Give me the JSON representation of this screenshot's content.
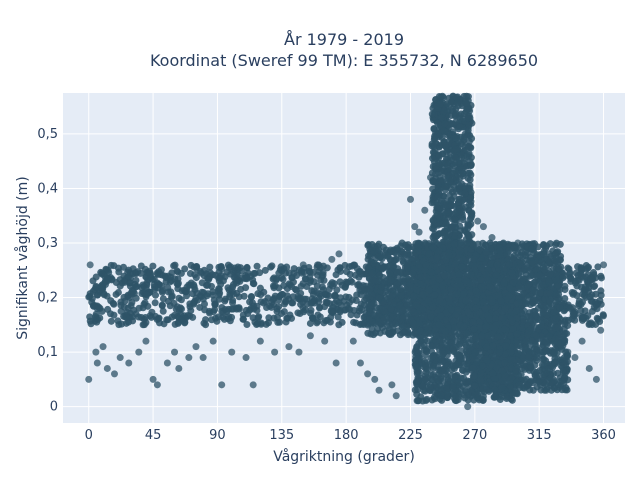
{
  "chart_data": {
    "type": "scatter",
    "title_lines": [
      "År 1979 - 2019",
      "Koordinat (Sweref 99 TM): E 355732, N 6289650"
    ],
    "xlabel": "Vågriktning (grader)",
    "ylabel": "Signifikant våghöjd (m)",
    "xlim": [
      -18,
      375
    ],
    "ylim": [
      -0.03,
      0.575
    ],
    "x_ticks": [
      0,
      45,
      90,
      135,
      180,
      225,
      270,
      315,
      360
    ],
    "x_tick_labels": [
      "0",
      "45",
      "90",
      "135",
      "180",
      "225",
      "270",
      "315",
      "360"
    ],
    "y_ticks": [
      0,
      0.1,
      0.2,
      0.3,
      0.4,
      0.5
    ],
    "y_tick_labels": [
      "0",
      "0,1",
      "0,2",
      "0,3",
      "0,4",
      "0,5"
    ],
    "grid": true,
    "marker_color": "#2e5367",
    "plot_bg": "#e5ecf6",
    "dense_regions": [
      {
        "x": [
          0,
          360
        ],
        "y": [
          0.15,
          0.26
        ]
      },
      {
        "x": [
          240,
          268
        ],
        "y": [
          0.3,
          0.57
        ]
      },
      {
        "x": [
          228,
          300
        ],
        "y": [
          0.01,
          0.3
        ]
      },
      {
        "x": [
          195,
          330
        ],
        "y": [
          0.13,
          0.3
        ]
      },
      {
        "x": [
          268,
          335
        ],
        "y": [
          0.03,
          0.15
        ]
      }
    ],
    "points": [
      {
        "x": 1,
        "y": 0.26
      },
      {
        "x": 0,
        "y": 0.05
      },
      {
        "x": 5,
        "y": 0.1
      },
      {
        "x": 6,
        "y": 0.08
      },
      {
        "x": 10,
        "y": 0.11
      },
      {
        "x": 13,
        "y": 0.07
      },
      {
        "x": 18,
        "y": 0.06
      },
      {
        "x": 22,
        "y": 0.09
      },
      {
        "x": 28,
        "y": 0.08
      },
      {
        "x": 35,
        "y": 0.1
      },
      {
        "x": 40,
        "y": 0.12
      },
      {
        "x": 45,
        "y": 0.05
      },
      {
        "x": 48,
        "y": 0.04
      },
      {
        "x": 55,
        "y": 0.08
      },
      {
        "x": 60,
        "y": 0.1
      },
      {
        "x": 63,
        "y": 0.07
      },
      {
        "x": 70,
        "y": 0.09
      },
      {
        "x": 75,
        "y": 0.11
      },
      {
        "x": 80,
        "y": 0.09
      },
      {
        "x": 87,
        "y": 0.12
      },
      {
        "x": 93,
        "y": 0.04
      },
      {
        "x": 100,
        "y": 0.1
      },
      {
        "x": 110,
        "y": 0.09
      },
      {
        "x": 115,
        "y": 0.04
      },
      {
        "x": 120,
        "y": 0.12
      },
      {
        "x": 130,
        "y": 0.1
      },
      {
        "x": 140,
        "y": 0.11
      },
      {
        "x": 147,
        "y": 0.1
      },
      {
        "x": 155,
        "y": 0.13
      },
      {
        "x": 165,
        "y": 0.12
      },
      {
        "x": 173,
        "y": 0.08
      },
      {
        "x": 185,
        "y": 0.12
      },
      {
        "x": 190,
        "y": 0.08
      },
      {
        "x": 195,
        "y": 0.06
      },
      {
        "x": 200,
        "y": 0.05
      },
      {
        "x": 203,
        "y": 0.03
      },
      {
        "x": 212,
        "y": 0.04
      },
      {
        "x": 215,
        "y": 0.02
      },
      {
        "x": 225,
        "y": 0.38
      },
      {
        "x": 228,
        "y": 0.33
      },
      {
        "x": 231,
        "y": 0.32
      },
      {
        "x": 235,
        "y": 0.36
      },
      {
        "x": 239,
        "y": 0.42
      },
      {
        "x": 272,
        "y": 0.34
      },
      {
        "x": 276,
        "y": 0.33
      },
      {
        "x": 282,
        "y": 0.31
      },
      {
        "x": 290,
        "y": 0.3
      },
      {
        "x": 300,
        "y": 0.3
      },
      {
        "x": 310,
        "y": 0.29
      },
      {
        "x": 318,
        "y": 0.28
      },
      {
        "x": 322,
        "y": 0.28
      },
      {
        "x": 265,
        "y": 0.0
      },
      {
        "x": 320,
        "y": 0.03
      },
      {
        "x": 335,
        "y": 0.1
      },
      {
        "x": 340,
        "y": 0.09
      },
      {
        "x": 345,
        "y": 0.12
      },
      {
        "x": 350,
        "y": 0.07
      },
      {
        "x": 355,
        "y": 0.05
      },
      {
        "x": 358,
        "y": 0.14
      },
      {
        "x": 360,
        "y": 0.26
      },
      {
        "x": 150,
        "y": 0.26
      },
      {
        "x": 160,
        "y": 0.26
      },
      {
        "x": 170,
        "y": 0.27
      },
      {
        "x": 175,
        "y": 0.28
      }
    ]
  }
}
